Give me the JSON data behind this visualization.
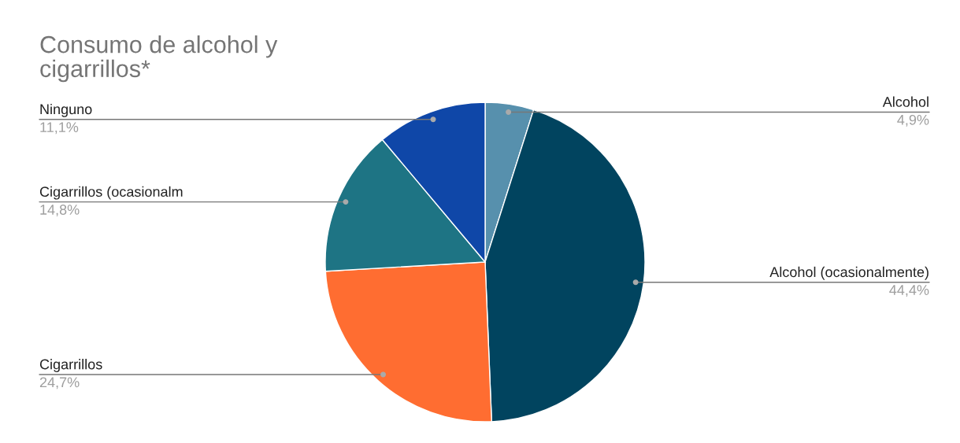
{
  "chart_data": {
    "type": "pie",
    "title": "Consumo de alcohol y\ncigarrillos*",
    "categories": [
      "Alcohol",
      "Alcohol (ocasionalmente)",
      "Cigarrillos",
      "Cigarrillos (ocasionalm",
      "Ninguno"
    ],
    "values": [
      4.9,
      44.4,
      24.7,
      14.8,
      11.1
    ],
    "value_labels": [
      "4,9%",
      "44,4%",
      "24,7%",
      "14,8%",
      "11,1%"
    ],
    "colors": [
      "#5790ad",
      "#01445f",
      "#ff6d31",
      "#1e7484",
      "#0f47a8"
    ],
    "legend": false
  }
}
